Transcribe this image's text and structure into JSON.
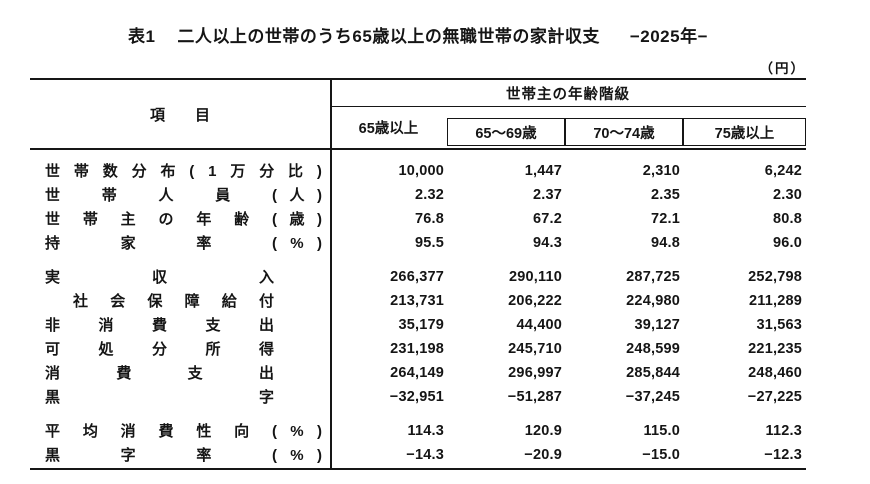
{
  "title": {
    "prefix": "表1",
    "main": "二人以上の世帯のうち65歳以上の無職世帯の家計収支",
    "period": "−2025年−"
  },
  "unit_note": "（円）",
  "table": {
    "item_header_chars": [
      "項",
      "目"
    ],
    "column_group_header": "世帯主の年齢階級",
    "columns": [
      "65歳以上",
      "65～69歳",
      "70～74歳",
      "75歳以上"
    ],
    "rows": [
      {
        "main": [
          "世",
          "帯",
          "数",
          "分",
          "布",
          "(",
          "1",
          "万",
          "分",
          "比",
          ")"
        ],
        "unit": null,
        "tight": false,
        "indent": false,
        "gap_before": false,
        "values": [
          "10,000",
          "1,447",
          "2,310",
          "6,242"
        ]
      },
      {
        "main": [
          "世",
          "帯",
          "人",
          "員"
        ],
        "unit": "(人)",
        "tight": false,
        "indent": false,
        "gap_before": false,
        "values": [
          "2.32",
          "2.37",
          "2.35",
          "2.30"
        ]
      },
      {
        "main": [
          "世",
          "帯",
          "主",
          "の",
          "年",
          "齢"
        ],
        "unit": "(歳)",
        "tight": false,
        "indent": false,
        "gap_before": false,
        "values": [
          "76.8",
          "67.2",
          "72.1",
          "80.8"
        ]
      },
      {
        "main": [
          "持",
          "家",
          "率"
        ],
        "unit": "(%)",
        "tight": false,
        "indent": false,
        "gap_before": false,
        "values": [
          "95.5",
          "94.3",
          "94.8",
          "96.0"
        ]
      },
      {
        "main": [
          "実",
          "収",
          "入"
        ],
        "unit": null,
        "tight": true,
        "indent": false,
        "gap_before": true,
        "values": [
          "266,377",
          "290,110",
          "287,725",
          "252,798"
        ]
      },
      {
        "main": [
          "社",
          "会",
          "保",
          "障",
          "給",
          "付"
        ],
        "unit": null,
        "tight": true,
        "indent": true,
        "gap_before": false,
        "values": [
          "213,731",
          "206,222",
          "224,980",
          "211,289"
        ]
      },
      {
        "main": [
          "非",
          "消",
          "費",
          "支",
          "出"
        ],
        "unit": null,
        "tight": true,
        "indent": false,
        "gap_before": false,
        "values": [
          "35,179",
          "44,400",
          "39,127",
          "31,563"
        ]
      },
      {
        "main": [
          "可",
          "処",
          "分",
          "所",
          "得"
        ],
        "unit": null,
        "tight": true,
        "indent": false,
        "gap_before": false,
        "values": [
          "231,198",
          "245,710",
          "248,599",
          "221,235"
        ]
      },
      {
        "main": [
          "消",
          "費",
          "支",
          "出"
        ],
        "unit": null,
        "tight": true,
        "indent": false,
        "gap_before": false,
        "values": [
          "264,149",
          "296,997",
          "285,844",
          "248,460"
        ]
      },
      {
        "main": [
          "黒",
          "字"
        ],
        "unit": null,
        "tight": true,
        "indent": false,
        "gap_before": false,
        "values": [
          "−32,951",
          "−51,287",
          "−37,245",
          "−27,225"
        ]
      },
      {
        "main": [
          "平",
          "均",
          "消",
          "費",
          "性",
          "向"
        ],
        "unit": "(%)",
        "tight": false,
        "indent": false,
        "gap_before": true,
        "values": [
          "114.3",
          "120.9",
          "115.0",
          "112.3"
        ]
      },
      {
        "main": [
          "黒",
          "字",
          "率"
        ],
        "unit": "(%)",
        "tight": false,
        "indent": false,
        "gap_before": false,
        "values": [
          "−14.3",
          "−20.9",
          "−15.0",
          "−12.3"
        ]
      }
    ]
  },
  "chart_data": {
    "type": "table",
    "title": "表1　二人以上の世帯のうち65歳以上の無職世帯の家計収支　−2025年−",
    "unit": "円",
    "column_group": "世帯主の年齢階級",
    "columns": [
      "65歳以上",
      "65～69歳",
      "70～74歳",
      "75歳以上"
    ],
    "rows": [
      {
        "item": "世帯数分布(1万分比)",
        "values": [
          10000,
          1447,
          2310,
          6242
        ]
      },
      {
        "item": "世帯人員(人)",
        "values": [
          2.32,
          2.37,
          2.35,
          2.3
        ]
      },
      {
        "item": "世帯主の年齢(歳)",
        "values": [
          76.8,
          67.2,
          72.1,
          80.8
        ]
      },
      {
        "item": "持家率(%)",
        "values": [
          95.5,
          94.3,
          94.8,
          96.0
        ]
      },
      {
        "item": "実収入",
        "values": [
          266377,
          290110,
          287725,
          252798
        ]
      },
      {
        "item": "社会保障給付",
        "values": [
          213731,
          206222,
          224980,
          211289
        ]
      },
      {
        "item": "非消費支出",
        "values": [
          35179,
          44400,
          39127,
          31563
        ]
      },
      {
        "item": "可処分所得",
        "values": [
          231198,
          245710,
          248599,
          221235
        ]
      },
      {
        "item": "消費支出",
        "values": [
          264149,
          296997,
          285844,
          248460
        ]
      },
      {
        "item": "黒字",
        "values": [
          -32951,
          -51287,
          -37245,
          -27225
        ]
      },
      {
        "item": "平均消費性向(%)",
        "values": [
          114.3,
          120.9,
          115.0,
          112.3
        ]
      },
      {
        "item": "黒字率(%)",
        "values": [
          -14.3,
          -20.9,
          -15.0,
          -12.3
        ]
      }
    ]
  }
}
